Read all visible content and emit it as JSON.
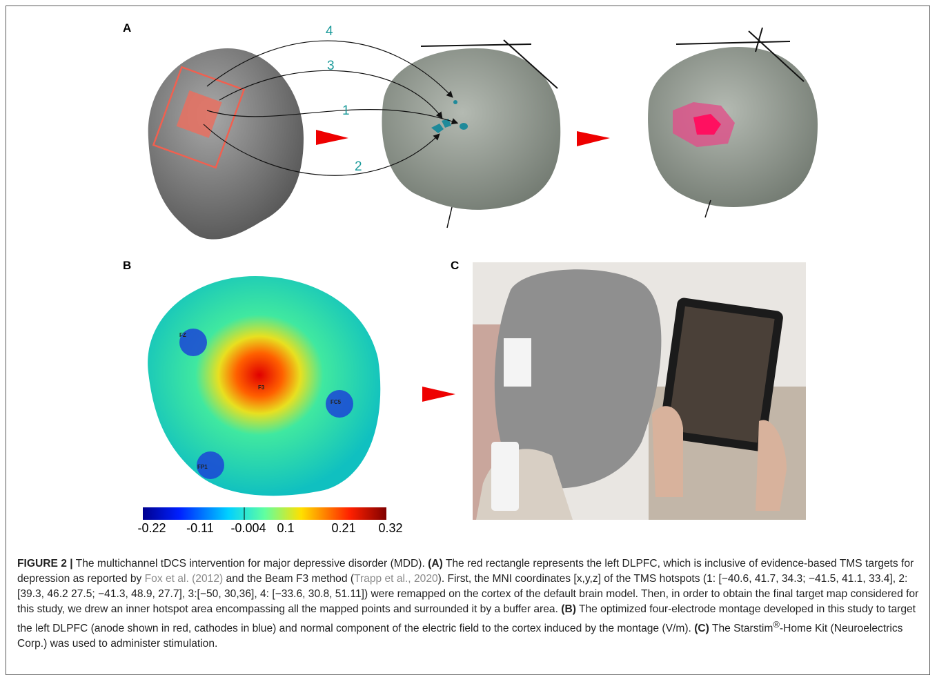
{
  "panels": {
    "A": {
      "label": "A",
      "arrow_numbers": [
        "4",
        "3",
        "1",
        "2"
      ]
    },
    "B": {
      "label": "B",
      "electrodes": [
        "FZ",
        "F3",
        "FC5",
        "FP1"
      ],
      "colorbar_ticks": [
        "-0.22",
        "-0.11",
        "-0.004",
        "0.1",
        "0.21",
        "0.32"
      ]
    },
    "C": {
      "label": "C"
    }
  },
  "caption": {
    "parts": [
      "FIGURE 2 |",
      " The multichannel tDCS intervention for major depressive disorder (MDD). ",
      "(A)",
      " The red rectangle represents the left DLPFC, which is inclusive of evidence-based TMS targets for depression as reported by ",
      "Fox et al. (2012)",
      " and the Beam F3 method (",
      "Trapp et al., 2020",
      "). First, the MNI coordinates [x,y,z] of the TMS hotspots (1: [−40.6, 41.7, 34.3; −41.5, 41.1, 33.4], 2: [39.3, 46.2 27.5; −41.3, 48.9, 27.7], 3:[−50, 30,36], 4: [−33.6, 30.8, 51.11]) were remapped on the cortex of the default brain model. Then, in order to obtain the final target map considered for this study, we drew an inner hotspot area encompassing all the mapped points and surrounded it by a buffer area. ",
      "(B)",
      " The optimized four-electrode montage developed in this study to target the left DLPFC (anode shown in red, cathodes in blue) and normal component of the electric field to the cortex induced by the montage (V/m). ",
      "(C)",
      " The Starstim",
      "®",
      "-Home Kit (Neuroelectrics Corp.) was used to administer stimulation."
    ]
  }
}
